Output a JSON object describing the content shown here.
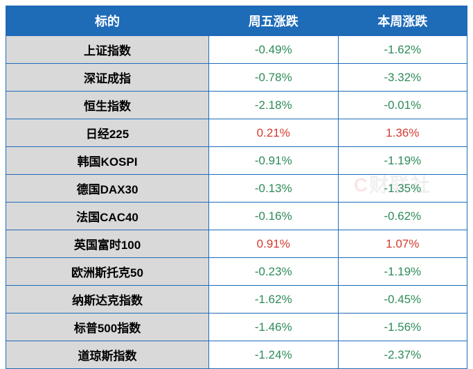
{
  "table": {
    "header_bg": "#1e6bb8",
    "header_fg": "#ffffff",
    "border_color": "#1e6bb8",
    "label_bg": "#d9d9d9",
    "value_bg": "#ffffff",
    "positive_color": "#d43a2f",
    "negative_color": "#2e8b57",
    "col_widths": [
      "44%",
      "28%",
      "28%"
    ],
    "columns": [
      "标的",
      "周五涨跌",
      "本周涨跌"
    ],
    "rows": [
      {
        "label": "上证指数",
        "friday": "-0.49%",
        "week": "-1.62%"
      },
      {
        "label": "深证成指",
        "friday": "-0.78%",
        "week": "-3.32%"
      },
      {
        "label": "恒生指数",
        "friday": "-2.18%",
        "week": "-0.01%"
      },
      {
        "label": "日经225",
        "friday": "0.21%",
        "week": "1.36%"
      },
      {
        "label": "韩国KOSPI",
        "friday": "-0.91%",
        "week": "-1.19%"
      },
      {
        "label": "德国DAX30",
        "friday": "-0.13%",
        "week": "-1.35%"
      },
      {
        "label": "法国CAC40",
        "friday": "-0.16%",
        "week": "-0.62%"
      },
      {
        "label": "英国富时100",
        "friday": "0.91%",
        "week": "1.07%"
      },
      {
        "label": "欧洲斯托克50",
        "friday": "-0.23%",
        "week": "-1.19%"
      },
      {
        "label": "纳斯达克指数",
        "friday": "-1.62%",
        "week": "-0.45%"
      },
      {
        "label": "标普500指数",
        "friday": "-1.46%",
        "week": "-1.56%"
      },
      {
        "label": "道琼斯指数",
        "friday": "-1.24%",
        "week": "-2.37%"
      }
    ]
  },
  "watermark": {
    "prefix": "C",
    "suffix": "财联社"
  }
}
